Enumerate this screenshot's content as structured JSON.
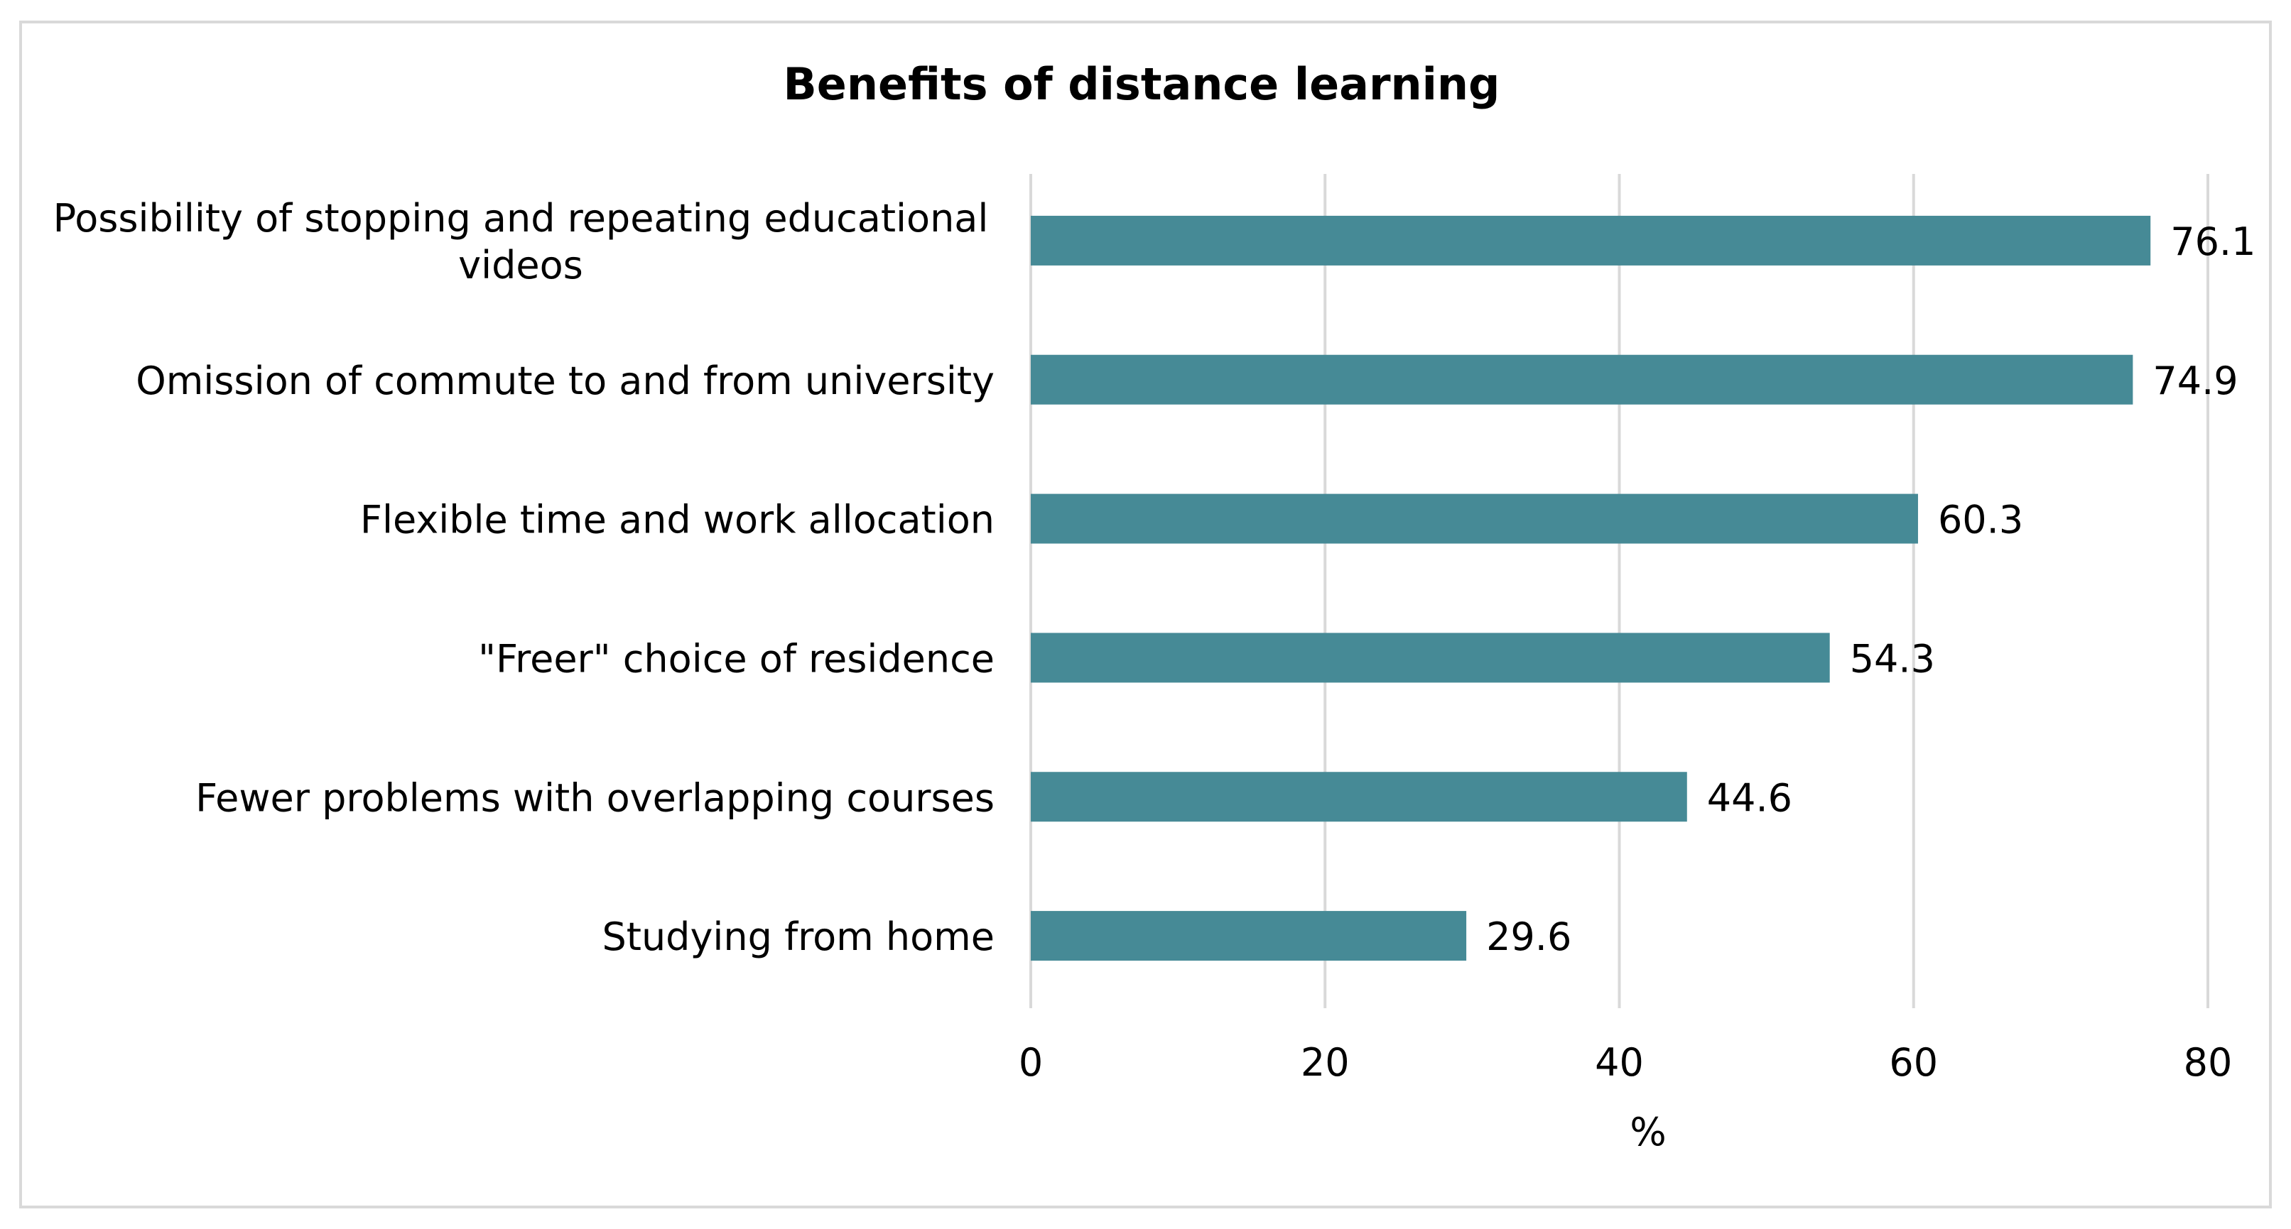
{
  "chart_data": {
    "type": "bar",
    "orientation": "horizontal",
    "title": "Benefits of distance learning",
    "xlabel": "%",
    "ylabel": "",
    "xlim": [
      0,
      80
    ],
    "xticks": [
      "0",
      "20",
      "40",
      "60",
      "80"
    ],
    "grid": true,
    "legend": "none",
    "bar_color": "#468a96",
    "categories": [
      [
        "Possibility of stopping and repeating educational",
        "videos"
      ],
      [
        "Omission of commute to and from university"
      ],
      [
        "Flexible time and work allocation"
      ],
      [
        "\"Freer\" choice of residence"
      ],
      [
        "Fewer problems with overlapping courses"
      ],
      [
        "Studying from home"
      ]
    ],
    "values": [
      76.1,
      74.9,
      60.3,
      54.3,
      44.6,
      29.6
    ],
    "value_labels": [
      "76.1",
      "74.9",
      "60.3",
      "54.3",
      "44.6",
      "29.6"
    ]
  }
}
